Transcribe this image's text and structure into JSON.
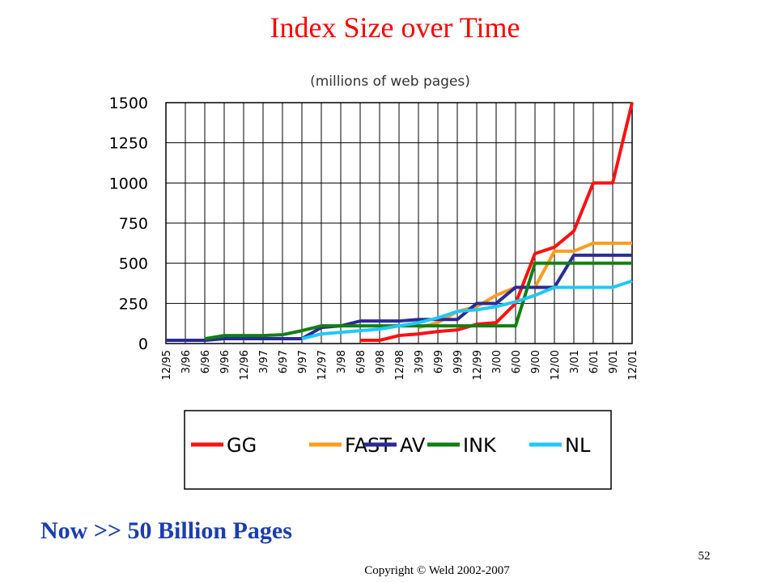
{
  "slide": {
    "headline": "Now >> 50 Billion Pages",
    "copyright": "Copyright © Weld 2002-2007",
    "page_number": "52"
  },
  "chart_data": {
    "type": "line",
    "title": "Index Size over Time",
    "subtitle": "(millions of web pages)",
    "categories": [
      "12/95",
      "3/96",
      "6/96",
      "9/96",
      "12/96",
      "3/97",
      "6/97",
      "9/97",
      "12/97",
      "3/98",
      "6/98",
      "9/98",
      "12/98",
      "3/99",
      "6/99",
      "9/99",
      "12/99",
      "3/00",
      "6/00",
      "9/00",
      "12/00",
      "3/01",
      "6/01",
      "9/01",
      "12/01"
    ],
    "series": [
      {
        "name": "GG",
        "color": "#ff1010",
        "values": [
          null,
          null,
          null,
          null,
          null,
          null,
          null,
          null,
          null,
          null,
          20,
          20,
          50,
          60,
          75,
          85,
          120,
          130,
          250,
          560,
          600,
          700,
          1000,
          1000,
          1500
        ]
      },
      {
        "name": "FAST",
        "color": "#ff9c1a",
        "values": [
          null,
          null,
          null,
          null,
          null,
          null,
          null,
          null,
          null,
          null,
          null,
          null,
          null,
          100,
          130,
          200,
          230,
          300,
          350,
          350,
          575,
          575,
          625,
          625,
          625
        ]
      },
      {
        "name": "AV",
        "color": "#2a2a9a",
        "values": [
          20,
          20,
          20,
          30,
          30,
          30,
          30,
          30,
          100,
          110,
          140,
          140,
          140,
          150,
          150,
          150,
          250,
          250,
          350,
          350,
          350,
          550,
          550,
          550,
          550
        ]
      },
      {
        "name": "INK",
        "color": "#108010",
        "values": [
          null,
          null,
          30,
          50,
          50,
          50,
          55,
          80,
          110,
          110,
          110,
          110,
          110,
          110,
          110,
          110,
          110,
          110,
          110,
          500,
          500,
          500,
          500,
          500,
          500
        ]
      },
      {
        "name": "NL",
        "color": "#1ec8ff",
        "values": [
          null,
          null,
          null,
          null,
          null,
          null,
          null,
          30,
          60,
          70,
          80,
          90,
          110,
          130,
          160,
          200,
          210,
          230,
          260,
          300,
          350,
          350,
          350,
          350,
          390
        ]
      }
    ],
    "ylim": [
      0,
      1500
    ],
    "yticks": [
      0,
      250,
      500,
      750,
      1000,
      1250,
      1500
    ],
    "grid": true
  }
}
